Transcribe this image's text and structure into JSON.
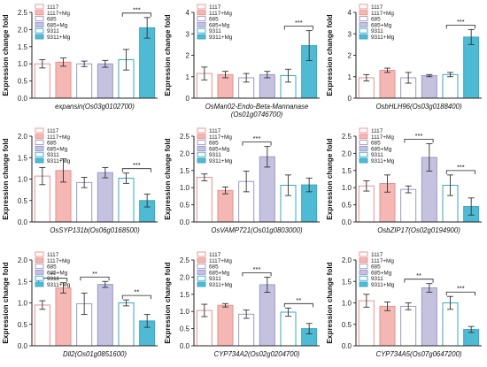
{
  "legend": {
    "entries": [
      "1117",
      "1117+Mg",
      "685",
      "685+Mg",
      "9311",
      "9311+Mg"
    ],
    "fills": [
      "#ffffff",
      "#f5b7b3",
      "#ffffff",
      "#c5c2e0",
      "#ffffff",
      "#4fbad4"
    ],
    "strokes": [
      "#e8928e",
      "#e8928e",
      "#9c98c9",
      "#9c98c9",
      "#3aa7c4",
      "#3aa7c4"
    ]
  },
  "chart_data": [
    {
      "type": "bar",
      "xlabel": "expansin(Os03g0102700)",
      "ylabel": "Expression change fold",
      "ylim": [
        0,
        2.5
      ],
      "yticks": [
        "0.0",
        "0.5",
        "1.0",
        "1.5",
        "2.0",
        "2.5"
      ],
      "categories": [
        "1117",
        "1117+Mg",
        "685",
        "685+Mg",
        "9311",
        "9311+Mg"
      ],
      "values": [
        1.0,
        1.05,
        1.0,
        1.0,
        1.12,
        2.05
      ],
      "errors": [
        0.12,
        0.12,
        0.08,
        0.1,
        0.3,
        0.3
      ],
      "significance": [
        {
          "from": 4,
          "to": 5,
          "label": "***"
        }
      ]
    },
    {
      "type": "bar",
      "xlabel": "OsMan02-Endo-Beta-Mannanase (Os01g0746700)",
      "ylabel": "Expression change fold",
      "ylim": [
        0,
        4
      ],
      "yticks": [
        "0",
        "1",
        "2",
        "3",
        "4"
      ],
      "categories": [
        "1117",
        "1117+Mg",
        "685",
        "685+Mg",
        "9311",
        "9311+Mg"
      ],
      "values": [
        1.15,
        1.1,
        0.95,
        1.1,
        1.05,
        2.45
      ],
      "errors": [
        0.3,
        0.15,
        0.2,
        0.15,
        0.3,
        0.7
      ],
      "significance": [
        {
          "from": 4,
          "to": 5,
          "label": "***"
        }
      ]
    },
    {
      "type": "bar",
      "xlabel": "OsbHLH96(Os03g0188400)",
      "ylabel": "Expression change fold",
      "ylim": [
        0,
        4
      ],
      "yticks": [
        "0",
        "1",
        "2",
        "3",
        "4"
      ],
      "categories": [
        "1117",
        "1117+Mg",
        "685",
        "685+Mg",
        "9311",
        "9311+Mg"
      ],
      "values": [
        0.95,
        1.3,
        0.95,
        1.05,
        1.1,
        2.85
      ],
      "errors": [
        0.15,
        0.1,
        0.25,
        0.05,
        0.1,
        0.35
      ],
      "significance": [
        {
          "from": 4,
          "to": 5,
          "label": "***"
        }
      ]
    },
    {
      "type": "bar",
      "xlabel": "OsSYP131b(Os06g0168500)",
      "ylabel": "Expression change fold",
      "ylim": [
        0,
        2.0
      ],
      "yticks": [
        "0.0",
        "0.5",
        "1.0",
        "1.5",
        "2.0"
      ],
      "categories": [
        "1117",
        "1117+Mg",
        "685",
        "685+Mg",
        "9311",
        "9311+Mg"
      ],
      "values": [
        1.07,
        1.2,
        0.92,
        1.15,
        1.02,
        0.5
      ],
      "errors": [
        0.2,
        0.27,
        0.12,
        0.12,
        0.12,
        0.15
      ],
      "significance": [
        {
          "from": 4,
          "to": 5,
          "label": "***"
        }
      ]
    },
    {
      "type": "bar",
      "xlabel": "OsVAMP721(Os01g0803000)",
      "ylabel": "Expression change fold",
      "ylim": [
        0,
        2.5
      ],
      "yticks": [
        "0.0",
        "0.5",
        "1.0",
        "1.5",
        "2.0",
        "2.5"
      ],
      "categories": [
        "1117",
        "1117+Mg",
        "685",
        "685+Mg",
        "9311",
        "9311+Mg"
      ],
      "values": [
        1.3,
        0.92,
        1.18,
        1.9,
        1.07,
        1.08
      ],
      "errors": [
        0.1,
        0.1,
        0.3,
        0.3,
        0.3,
        0.2
      ],
      "significance": [
        {
          "from": 2,
          "to": 3,
          "label": "***"
        }
      ]
    },
    {
      "type": "bar",
      "xlabel": "OsbZIP17(Os02g0194900)",
      "ylabel": "Expression change fold",
      "ylim": [
        0,
        2.5
      ],
      "yticks": [
        "0.0",
        "0.5",
        "1.0",
        "1.5",
        "2.0",
        "2.5"
      ],
      "categories": [
        "1117",
        "1117+Mg",
        "685",
        "685+Mg",
        "9311",
        "9311+Mg"
      ],
      "values": [
        1.05,
        1.12,
        0.95,
        1.88,
        1.07,
        0.45
      ],
      "errors": [
        0.15,
        0.25,
        0.1,
        0.4,
        0.3,
        0.25
      ],
      "significance": [
        {
          "from": 2,
          "to": 3,
          "label": "***"
        },
        {
          "from": 4,
          "to": 5,
          "label": "***"
        }
      ]
    },
    {
      "type": "bar",
      "xlabel": "Dll2(Os01g0851600)",
      "ylabel": "Expression change fold",
      "ylim": [
        0,
        2.0
      ],
      "yticks": [
        "0.0",
        "0.5",
        "1.0",
        "1.5",
        "2.0"
      ],
      "categories": [
        "1117",
        "1117+Mg",
        "685",
        "685+Mg",
        "9311",
        "9311+Mg"
      ],
      "values": [
        0.95,
        1.35,
        0.98,
        1.43,
        1.0,
        0.58
      ],
      "errors": [
        0.1,
        0.12,
        0.25,
        0.07,
        0.07,
        0.15
      ],
      "significance": [
        {
          "from": 0,
          "to": 1,
          "label": "**"
        },
        {
          "from": 2,
          "to": 3,
          "label": "**"
        },
        {
          "from": 4,
          "to": 5,
          "label": "**"
        }
      ]
    },
    {
      "type": "bar",
      "xlabel": "CYP734A2(Os02g0204700)",
      "ylabel": "Expression change fold",
      "ylim": [
        0,
        2.5
      ],
      "yticks": [
        "0.0",
        "0.5",
        "1.0",
        "1.5",
        "2.0",
        "2.5"
      ],
      "categories": [
        "1117",
        "1117+Mg",
        "685",
        "685+Mg",
        "9311",
        "9311+Mg"
      ],
      "values": [
        1.03,
        1.18,
        0.92,
        1.78,
        0.98,
        0.5
      ],
      "errors": [
        0.18,
        0.05,
        0.12,
        0.22,
        0.12,
        0.15
      ],
      "significance": [
        {
          "from": 2,
          "to": 3,
          "label": "***"
        },
        {
          "from": 4,
          "to": 5,
          "label": "**"
        }
      ]
    },
    {
      "type": "bar",
      "xlabel": "CYP734A5(Os07g0647200)",
      "ylabel": "Expression change fold",
      "ylim": [
        0,
        2.0
      ],
      "yticks": [
        "0.0",
        "0.5",
        "1.0",
        "1.5",
        "2.0"
      ],
      "categories": [
        "1117",
        "1117+Mg",
        "685",
        "685+Mg",
        "9311",
        "9311+Mg"
      ],
      "values": [
        1.05,
        0.92,
        0.92,
        1.35,
        1.0,
        0.38
      ],
      "errors": [
        0.15,
        0.1,
        0.08,
        0.1,
        0.15,
        0.07
      ],
      "significance": [
        {
          "from": 2,
          "to": 3,
          "label": "**"
        },
        {
          "from": 4,
          "to": 5,
          "label": "***"
        }
      ]
    }
  ]
}
